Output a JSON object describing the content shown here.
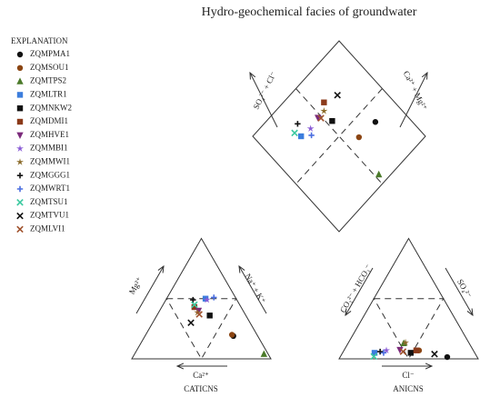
{
  "chart_data": {
    "type": "piper",
    "title": "Hydro-geochemical facies of groundwater",
    "legend_title": "EXPLANATION",
    "cation_caption": "CATICNS",
    "anion_caption": "ANICNS",
    "axis_labels": {
      "mg": "Mg²⁺",
      "nak": "Na⁺ + K⁺",
      "ca": "Ca²⁺",
      "co3": "CO₃²⁻ + HCO₃⁻",
      "so4": "SO₄²⁻",
      "cl": "Cl⁻",
      "so4cl": "SO₄²⁻ + Cl⁻",
      "camg": "Ca²⁺ + Mg²⁺"
    },
    "series": [
      {
        "name": "ZQMPMA1",
        "color": "#111111",
        "marker": "circle",
        "ca": 17.5,
        "mg": 19,
        "cl": 77,
        "so4": 1.5
      },
      {
        "name": "ZQMSOU1",
        "color": "#8b4513",
        "marker": "circle",
        "ca": 18,
        "mg": 20,
        "cl": 54,
        "so4": 7
      },
      {
        "name": "ZQMTPS2",
        "color": "#4b7a2a",
        "marker": "triangle",
        "ca": 3,
        "mg": 4,
        "cl": 40,
        "so4": 13
      },
      {
        "name": "ZQMLTR1",
        "color": "#3b7ddd",
        "marker": "square",
        "ca": 22,
        "mg": 50,
        "cl": 23,
        "so4": 5
      },
      {
        "name": "ZQMNKW2",
        "color": "#111111",
        "marker": "square",
        "ca": 26,
        "mg": 36,
        "cl": 49,
        "so4": 5
      },
      {
        "name": "ZQMDMI1",
        "color": "#8b3a1a",
        "marker": "square",
        "ca": 33.5,
        "mg": 43,
        "cl": 52,
        "so4": 7
      },
      {
        "name": "ZQMHVE1",
        "color": "#7b2a7b",
        "marker": "triangle-down",
        "ca": 32,
        "mg": 40,
        "cl": 40,
        "so4": 7.5
      },
      {
        "name": "ZQMMBI1",
        "color": "#8a5cd6",
        "marker": "star",
        "ca": 21.5,
        "mg": 49,
        "cl": 30.5,
        "so4": 7
      },
      {
        "name": "ZQMMWI1",
        "color": "#8b6b2a",
        "marker": "star",
        "ca": 33.5,
        "mg": 38.5,
        "cl": 41,
        "so4": 13.5
      },
      {
        "name": "ZQMGGG1",
        "color": "#111111",
        "marker": "plus",
        "ca": 31.5,
        "mg": 49,
        "cl": 26.5,
        "so4": 6
      },
      {
        "name": "ZQMWRT1",
        "color": "#4a6ee0",
        "marker": "plus",
        "ca": 15.5,
        "mg": 51,
        "cl": 29.5,
        "so4": 5
      },
      {
        "name": "ZQMTSU1",
        "color": "#3cc9a0",
        "marker": "x",
        "ca": 32.5,
        "mg": 45,
        "cl": 24,
        "so4": 2
      },
      {
        "name": "ZQMTVU1",
        "color": "#111111",
        "marker": "x",
        "ca": 42.5,
        "mg": 30,
        "cl": 66.6,
        "so4": 4
      },
      {
        "name": "ZQMLVI1",
        "color": "#a0522d",
        "marker": "x",
        "ca": 33,
        "mg": 37,
        "cl": 43,
        "so4": 6
      }
    ]
  }
}
